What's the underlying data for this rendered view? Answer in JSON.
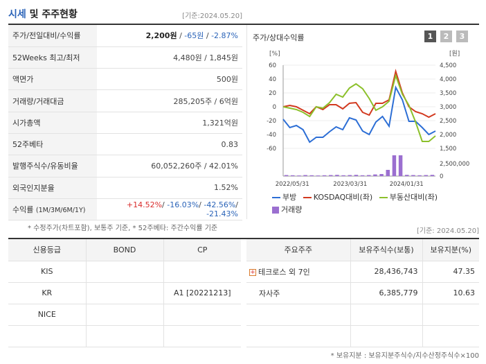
{
  "header": {
    "title_blue": "시세",
    "title_rest": " 및 주주현황",
    "date": "[기준:2024.05.20]"
  },
  "info_rows": [
    {
      "label": "주가/전일대비/수익률",
      "price": "2,200원",
      "sep1": " / ",
      "change": "-65원",
      "sep2": " / ",
      "rate": "-2.87%"
    },
    {
      "label": "52Weeks 최고/최저",
      "value": "4,480원 / 1,845원"
    },
    {
      "label": "액면가",
      "value": "500원"
    },
    {
      "label": "거래량/거래대금",
      "value": "285,205주 / 6억원"
    },
    {
      "label": "시가총액",
      "value": "1,321억원"
    },
    {
      "label": "52주베타",
      "value": "0.83"
    },
    {
      "label": "발행주식수/유동비율",
      "value": "60,052,260주 / 42.01%"
    },
    {
      "label": "외국인지분율",
      "value": "1.52%"
    },
    {
      "label": "수익률",
      "label_sub": "(1M/3M/6M/1Y)",
      "r1": "+14.52%",
      "r2": "-16.03%",
      "r3": "-42.56%",
      "r4": "-21.43%",
      "sep": "/ "
    }
  ],
  "note1": "* 수정주가(차트포함), 보통주 기준, * 52주베타: 주간수익률 기준",
  "chart_panel": {
    "title": "주가/상대수익률",
    "pages": [
      "1",
      "2",
      "3"
    ]
  },
  "chart_data": {
    "type": "line",
    "left_unit": "[%]",
    "right_unit": "[원]",
    "left_ticks": [
      "60",
      "40",
      "20",
      "0",
      "-20",
      "-40",
      "-60"
    ],
    "right_ticks": [
      "4,500",
      "4,000",
      "3,500",
      "3,000",
      "2,500",
      "2,000",
      "1,500"
    ],
    "volume_ticks": [
      "2,500,000",
      "0"
    ],
    "x_labels": [
      "2022/05/31",
      "2023/03/31",
      "2024/01/31"
    ],
    "ylim": [
      -60,
      60
    ],
    "series": [
      {
        "name": "부방",
        "color": "#2c6ed5",
        "values": [
          -18,
          -30,
          -27,
          -33,
          -51,
          -44,
          -44,
          -36,
          -29,
          -33,
          -16,
          -19,
          -35,
          -40,
          -22,
          -14,
          -28,
          28,
          10,
          -21,
          -21,
          -30,
          -40,
          -35
        ]
      },
      {
        "name": "KOSDAQ대비(좌)",
        "color": "#d2391f",
        "values": [
          0,
          2,
          0,
          -5,
          -10,
          0,
          -4,
          3,
          3,
          -3,
          5,
          6,
          -8,
          -12,
          5,
          5,
          10,
          51,
          20,
          0,
          -7,
          -10,
          -15,
          -10
        ]
      },
      {
        "name": "부동산대비(좌)",
        "color": "#8cc02b",
        "values": [
          0,
          -2,
          -4,
          -8,
          -14,
          0,
          -2,
          6,
          18,
          14,
          27,
          33,
          26,
          12,
          -5,
          0,
          8,
          45,
          18,
          2,
          -22,
          -50,
          -50,
          -42
        ]
      }
    ],
    "volume": [
      0.05,
      0.04,
      0.03,
      0.05,
      0.04,
      0.03,
      0.04,
      0.05,
      0.06,
      0.04,
      0.05,
      0.06,
      0.04,
      0.05,
      0.08,
      0.1,
      0.3,
      1.0,
      1.0,
      0.06,
      0.05,
      0.04,
      0.05,
      0.06
    ]
  },
  "legend": {
    "s1": "부방",
    "s2": "KOSDAQ대비(좌)",
    "s3": "부동산대비(좌)",
    "vol": "거래량"
  },
  "date2": "[기준: 2024.05.20]",
  "credit": {
    "headers": [
      "신용등급",
      "BOND",
      "CP"
    ],
    "rows": [
      [
        "KIS",
        "",
        ""
      ],
      [
        "KR",
        "",
        "A1  [20221213]"
      ],
      [
        "NICE",
        "",
        ""
      ],
      [
        "",
        "",
        ""
      ]
    ]
  },
  "holders": {
    "headers": [
      "주요주주",
      "보유주식수(보통)",
      "보유지분(%)"
    ],
    "rows": [
      {
        "name": "테크로스 외 7인",
        "shares": "28,436,743",
        "pct": "47.35"
      },
      {
        "name": "자사주",
        "shares": "6,385,779",
        "pct": "10.63"
      },
      {
        "name": "",
        "shares": "",
        "pct": ""
      },
      {
        "name": "",
        "shares": "",
        "pct": ""
      }
    ]
  },
  "note2": "* 보유지분 : 보유지분주식수/지수산정주식수×100"
}
